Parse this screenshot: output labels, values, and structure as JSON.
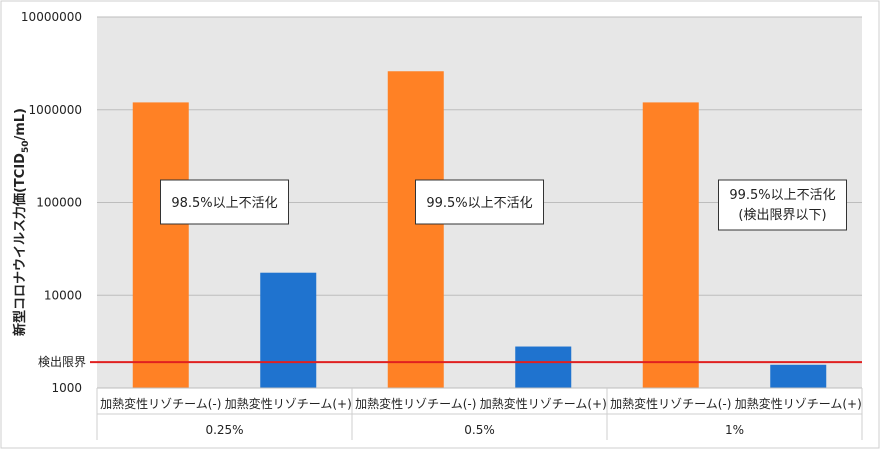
{
  "chart_data": {
    "type": "bar",
    "scale": "log",
    "ylim": [
      1000,
      10000000
    ],
    "y_ticks": [
      "10000000",
      "1000000",
      "100000",
      "10000",
      "1000"
    ],
    "y_tick_values": [
      10000000,
      1000000,
      100000,
      10000,
      1000
    ],
    "ylabel_main": "新型コロナウイルス力価(TCID",
    "ylabel_sub": "50",
    "ylabel_end": "/mL)",
    "groups": [
      {
        "label": "0.25%",
        "bars": [
          {
            "category": "加熱変性リゾチーム(-)",
            "value": 1200000,
            "color": "#FF8125"
          },
          {
            "category": "加熱変性リゾチーム(+)",
            "value": 17500,
            "color": "#1F73CF"
          }
        ],
        "note": [
          "98.5%以上不活化"
        ]
      },
      {
        "label": "0.5%",
        "bars": [
          {
            "category": "加熱変性リゾチーム(-)",
            "value": 2600000,
            "color": "#FF8125"
          },
          {
            "category": "加熱変性リゾチーム(+)",
            "value": 2800,
            "color": "#1F73CF"
          }
        ],
        "note": [
          "99.5%以上不活化"
        ]
      },
      {
        "label": "1%",
        "bars": [
          {
            "category": "加熱変性リゾチーム(-)",
            "value": 1200000,
            "color": "#FF8125"
          },
          {
            "category": "加熱変性リゾチーム(+)",
            "value": 1780,
            "color": "#1F73CF"
          }
        ],
        "note": [
          "99.5%以上不活化",
          "(検出限界以下)"
        ]
      }
    ],
    "detection_limit": {
      "label": "検出限界",
      "value": 1900,
      "color": "#E02020"
    },
    "grid": true,
    "plot_background": "#E7E7E7"
  }
}
